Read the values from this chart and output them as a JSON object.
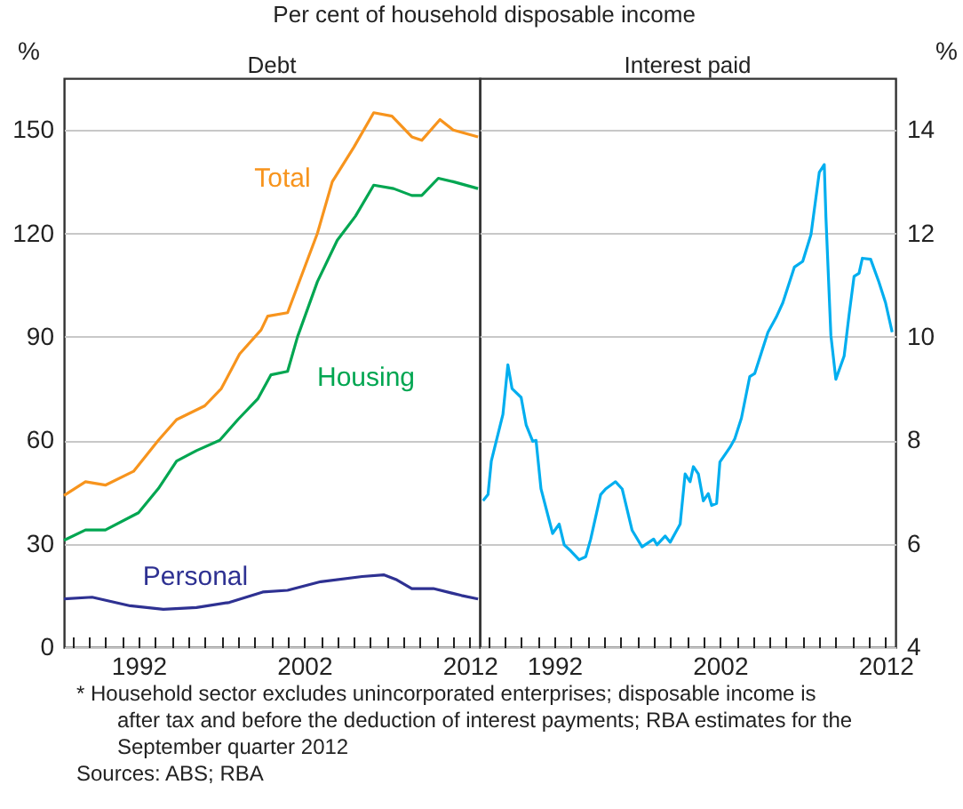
{
  "chart_data": [
    {
      "type": "line",
      "title": "Debt",
      "subtitle": "Per cent of household disposable income",
      "ylabel": "%",
      "xlim": [
        1987.5,
        2012.6
      ],
      "xticks": [
        {
          "value": 1988,
          "label": null
        },
        {
          "value": 1989,
          "label": null
        },
        {
          "value": 1990,
          "label": null
        },
        {
          "value": 1991,
          "label": null
        },
        {
          "value": 1992,
          "label": "1992"
        },
        {
          "value": 1993,
          "label": null
        },
        {
          "value": 1994,
          "label": null
        },
        {
          "value": 1995,
          "label": null
        },
        {
          "value": 1996,
          "label": null
        },
        {
          "value": 1997,
          "label": null
        },
        {
          "value": 1998,
          "label": null
        },
        {
          "value": 1999,
          "label": null
        },
        {
          "value": 2000,
          "label": null
        },
        {
          "value": 2001,
          "label": null
        },
        {
          "value": 2002,
          "label": "2002"
        },
        {
          "value": 2003,
          "label": null
        },
        {
          "value": 2004,
          "label": null
        },
        {
          "value": 2005,
          "label": null
        },
        {
          "value": 2006,
          "label": null
        },
        {
          "value": 2007,
          "label": null
        },
        {
          "value": 2008,
          "label": null
        },
        {
          "value": 2009,
          "label": null
        },
        {
          "value": 2010,
          "label": null
        },
        {
          "value": 2011,
          "label": null
        },
        {
          "value": 2012,
          "label": "2012"
        }
      ],
      "ylim": [
        0,
        165
      ],
      "yticks": [
        0,
        30,
        60,
        90,
        120,
        150
      ],
      "grid": "y",
      "series": [
        {
          "name": "Total",
          "color": "#f7941d",
          "x": [
            1987.5,
            1988.8,
            1990,
            1991.7,
            1993.2,
            1994.3,
            1996,
            1997,
            1998.1,
            1999.4,
            1999.8,
            2001,
            2002.8,
            2003.7,
            2005,
            2006.2,
            2007.3,
            2008.5,
            2009.1,
            2010.2,
            2011,
            2012.5
          ],
          "values": [
            44,
            48,
            47,
            51,
            60,
            66,
            70,
            75,
            85,
            92,
            96,
            97,
            120,
            135,
            145,
            155,
            154,
            148,
            147,
            153,
            150,
            148
          ]
        },
        {
          "name": "Housing",
          "color": "#00a651",
          "x": [
            1987.5,
            1988.8,
            1990,
            1992,
            1993.2,
            1994.3,
            1995.5,
            1996.9,
            1998,
            1999.2,
            2000,
            2001,
            2001.6,
            2002.8,
            2004,
            2005.1,
            2006.2,
            2007.4,
            2008.5,
            2009.1,
            2010.1,
            2011,
            2012.5
          ],
          "values": [
            31,
            34,
            34,
            39,
            46,
            54,
            57,
            60,
            66,
            72,
            79,
            80,
            90,
            106,
            118,
            125,
            134,
            133,
            131,
            131,
            136,
            135,
            133
          ]
        },
        {
          "name": "Personal",
          "color": "#2e3192",
          "x": [
            1987.5,
            1989.2,
            1991.5,
            1993.5,
            1995.5,
            1997.5,
            1999.5,
            2001,
            2003,
            2005.5,
            2006.8,
            2007.6,
            2008.5,
            2009.8,
            2011.5,
            2012.5
          ],
          "values": [
            14,
            14.5,
            12,
            11,
            11.5,
            13,
            16,
            16.5,
            19,
            20.5,
            21,
            19.5,
            17,
            17,
            15,
            14
          ]
        }
      ],
      "annotations": [
        "* Household sector excludes unincorporated enterprises; disposable income is after tax and before the deduction of interest payments; RBA estimates for the September quarter 2012",
        "Sources: ABS; RBA"
      ]
    },
    {
      "type": "line",
      "title": "Interest paid",
      "ylabel": "%",
      "xlim": [
        1987.5,
        2012.6
      ],
      "xticks": [
        {
          "value": 1988,
          "label": null
        },
        {
          "value": 1989,
          "label": null
        },
        {
          "value": 1990,
          "label": null
        },
        {
          "value": 1991,
          "label": null
        },
        {
          "value": 1992,
          "label": "1992"
        },
        {
          "value": 1993,
          "label": null
        },
        {
          "value": 1994,
          "label": null
        },
        {
          "value": 1995,
          "label": null
        },
        {
          "value": 1996,
          "label": null
        },
        {
          "value": 1997,
          "label": null
        },
        {
          "value": 1998,
          "label": null
        },
        {
          "value": 1999,
          "label": null
        },
        {
          "value": 2000,
          "label": null
        },
        {
          "value": 2001,
          "label": null
        },
        {
          "value": 2002,
          "label": "2002"
        },
        {
          "value": 2003,
          "label": null
        },
        {
          "value": 2004,
          "label": null
        },
        {
          "value": 2005,
          "label": null
        },
        {
          "value": 2006,
          "label": null
        },
        {
          "value": 2007,
          "label": null
        },
        {
          "value": 2008,
          "label": null
        },
        {
          "value": 2009,
          "label": null
        },
        {
          "value": 2010,
          "label": null
        },
        {
          "value": 2011,
          "label": null
        },
        {
          "value": 2012,
          "label": "2012"
        }
      ],
      "ylim": [
        4,
        15
      ],
      "yticks": [
        4,
        6,
        8,
        10,
        12,
        14
      ],
      "grid": "y",
      "series": [
        {
          "color": "#00aeef",
          "x": [
            1987.7,
            1988,
            1988.2,
            1988.9,
            1989.2,
            1989.45,
            1990,
            1990.3,
            1990.7,
            1990.9,
            1991.2,
            1991.9,
            1992.3,
            1992.6,
            1993,
            1993.5,
            1993.9,
            1994.2,
            1994.8,
            1995.1,
            1995.7,
            1996.1,
            1996.7,
            1997.3,
            1998,
            1998.2,
            1998.7,
            1999,
            1999.6,
            1999.9,
            2000.2,
            2000.4,
            2000.7,
            2001,
            2001.3,
            2001.5,
            2001.8,
            2002,
            2002.6,
            2002.9,
            2003.3,
            2003.8,
            2004.1,
            2004.5,
            2004.9,
            2005.4,
            2005.8,
            2006.5,
            2007,
            2007.5,
            2008,
            2008.3,
            2008.4,
            2008.7,
            2009,
            2009.5,
            2009.8,
            2010.1,
            2010.4,
            2010.6,
            2011.1,
            2011.6,
            2012,
            2012.4
          ],
          "values": [
            6.83,
            6.95,
            7.6,
            8.5,
            9.46,
            9,
            8.83,
            8.3,
            7.98,
            8,
            7.06,
            6.2,
            6.38,
            5.98,
            5.86,
            5.69,
            5.75,
            6.09,
            6.95,
            7.06,
            7.2,
            7.06,
            6.26,
            5.94,
            6.09,
            5.98,
            6.15,
            6.03,
            6.38,
            7.35,
            7.2,
            7.49,
            7.35,
            6.83,
            6.97,
            6.74,
            6.78,
            7.58,
            7.86,
            8.03,
            8.43,
            9.23,
            9.29,
            9.69,
            10.09,
            10.38,
            10.66,
            11.35,
            11.46,
            11.98,
            13.18,
            13.33,
            12.32,
            10.03,
            9.18,
            9.63,
            10.43,
            11.17,
            11.23,
            11.52,
            11.5,
            11.06,
            10.66,
            10.09
          ]
        }
      ]
    }
  ]
}
